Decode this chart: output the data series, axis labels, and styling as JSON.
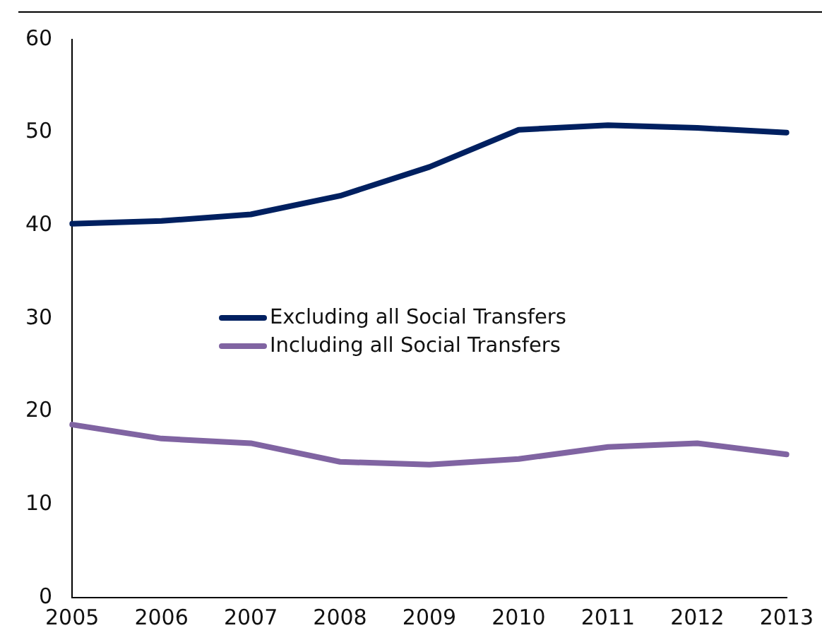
{
  "chart_data": {
    "type": "line",
    "categories": [
      "2005",
      "2006",
      "2007",
      "2008",
      "2009",
      "2010",
      "2011",
      "2012",
      "2013"
    ],
    "series": [
      {
        "name": "Excluding all Social Transfers",
        "color": "#002060",
        "values": [
          40.2,
          40.5,
          41.2,
          43.2,
          46.3,
          50.3,
          50.8,
          50.5,
          50.0
        ]
      },
      {
        "name": "Including all Social Transfers",
        "color": "#8064a2",
        "values": [
          18.6,
          17.1,
          16.6,
          14.6,
          14.3,
          14.9,
          16.2,
          16.6,
          15.4
        ]
      }
    ],
    "ylim": [
      0,
      60
    ],
    "yticks": [
      0,
      10,
      20,
      30,
      40,
      50,
      60
    ],
    "grid": false,
    "legend": "left",
    "marker": "none",
    "line_style": "solid"
  }
}
